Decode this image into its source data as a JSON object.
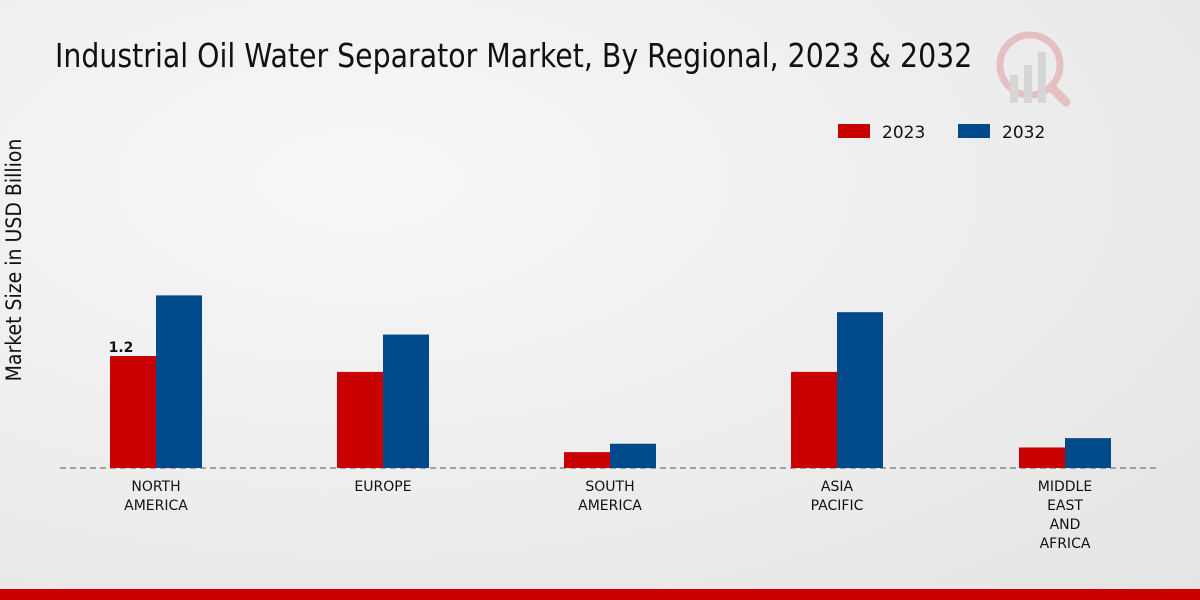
{
  "chart_data": {
    "type": "bar",
    "title": "Industrial Oil Water Separator Market, By Regional, 2023 & 2032",
    "xlabel": "",
    "ylabel": "Market Size in USD Billion",
    "categories": [
      [
        "NORTH",
        "AMERICA"
      ],
      [
        "EUROPE"
      ],
      [
        "SOUTH",
        "AMERICA"
      ],
      [
        "ASIA",
        "PACIFIC"
      ],
      [
        "MIDDLE",
        "EAST",
        "AND",
        "AFRICA"
      ]
    ],
    "series": [
      {
        "name": "2023",
        "color": "#c80000",
        "values": [
          1.2,
          1.03,
          0.17,
          1.03,
          0.22
        ]
      },
      {
        "name": "2032",
        "color": "#004a8c",
        "values": [
          1.85,
          1.43,
          0.26,
          1.67,
          0.32
        ]
      }
    ],
    "data_labels": [
      {
        "series": 0,
        "index": 0,
        "text": "1.2"
      }
    ],
    "ylim": [
      0,
      4.0
    ],
    "grid": false,
    "legend": "top-right"
  }
}
